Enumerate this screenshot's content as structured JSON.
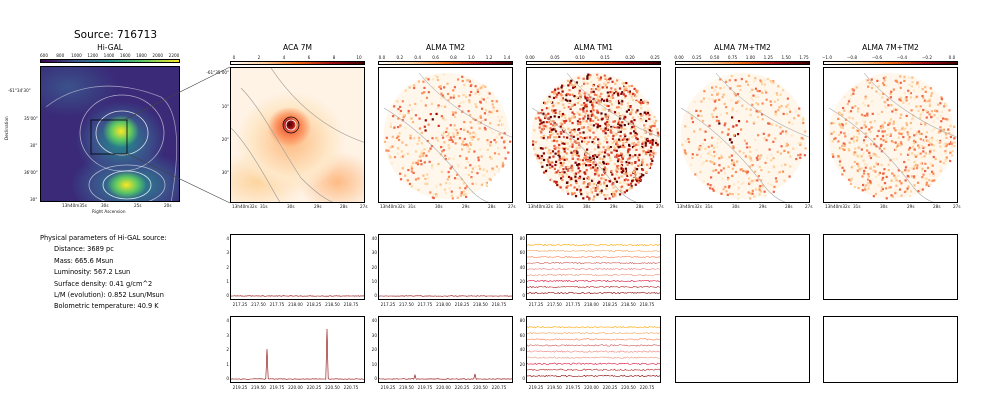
{
  "title": "Source: 716713",
  "panels": [
    {
      "title": "Hi-GAL",
      "cbar_ticks": [
        "600",
        "800",
        "1000",
        "1200",
        "1400",
        "1600",
        "1800",
        "2000",
        "2200"
      ]
    },
    {
      "title": "ACA 7M",
      "cbar_ticks": [
        "0",
        "2",
        "4",
        "6",
        "8",
        "10"
      ]
    },
    {
      "title": "ALMA TM2",
      "cbar_ticks": [
        "0.0",
        "0.2",
        "0.4",
        "0.6",
        "0.8",
        "1.0",
        "1.2",
        "1.4"
      ]
    },
    {
      "title": "ALMA TM1",
      "cbar_ticks": [
        "0.00",
        "0.05",
        "0.10",
        "0.15",
        "0.20",
        "0.25"
      ]
    },
    {
      "title": "ALMA 7M+TM2",
      "cbar_ticks": [
        "0.00",
        "0.25",
        "0.50",
        "0.75",
        "1.00",
        "1.25",
        "1.50",
        "1.75"
      ]
    },
    {
      "title": "ALMA 7M+TM2",
      "cbar_ticks": [
        "−1.0",
        "−0.8",
        "−0.6",
        "−0.4",
        "−0.2",
        "0.0"
      ]
    }
  ],
  "higal_axes": {
    "ylabel": "Declination",
    "xlabel": "Right Ascension",
    "yticks": [
      "-61°34'30\"",
      "35'00\"",
      "30\"",
      "36'00\"",
      "30\""
    ],
    "xticks": [
      "13h40m35s",
      "30s",
      "25s",
      "20s"
    ]
  },
  "map_axes": {
    "yticks": [
      "-61°35'00\"",
      "10\"",
      "20\"",
      "30\""
    ],
    "xticks": [
      "13h40m32s",
      "31s",
      "30s",
      "29s",
      "28s",
      "27s"
    ]
  },
  "params": {
    "heading": "Physical parameters of Hi-GAL source:",
    "rows": [
      "Distance: 3689 pc",
      "Mass: 665.6 Msun",
      "Luminosity: 567.2 Lsun",
      "Surface density: 0.41 g/cm^2",
      "L/M (evolution): 0.852 Lsun/Msun",
      "Bolometric temperature: 40.9 K"
    ]
  },
  "spectra": {
    "row1_xticks": [
      "217.25",
      "217.50",
      "217.75",
      "218.00",
      "218.25",
      "218.50",
      "218.75"
    ],
    "row2_xticks": [
      "219.25",
      "219.50",
      "219.75",
      "220.00",
      "220.25",
      "220.50",
      "220.75"
    ],
    "yticks_aca": [
      "0",
      "1",
      "2",
      "3",
      "4"
    ],
    "yticks_tm2": [
      "0",
      "10",
      "20",
      "30",
      "40"
    ],
    "yticks_tm1": [
      "0",
      "20",
      "40",
      "60",
      "80"
    ]
  },
  "colors": {
    "spectrum": "#8b0000",
    "contour": "#aaaaaa"
  }
}
